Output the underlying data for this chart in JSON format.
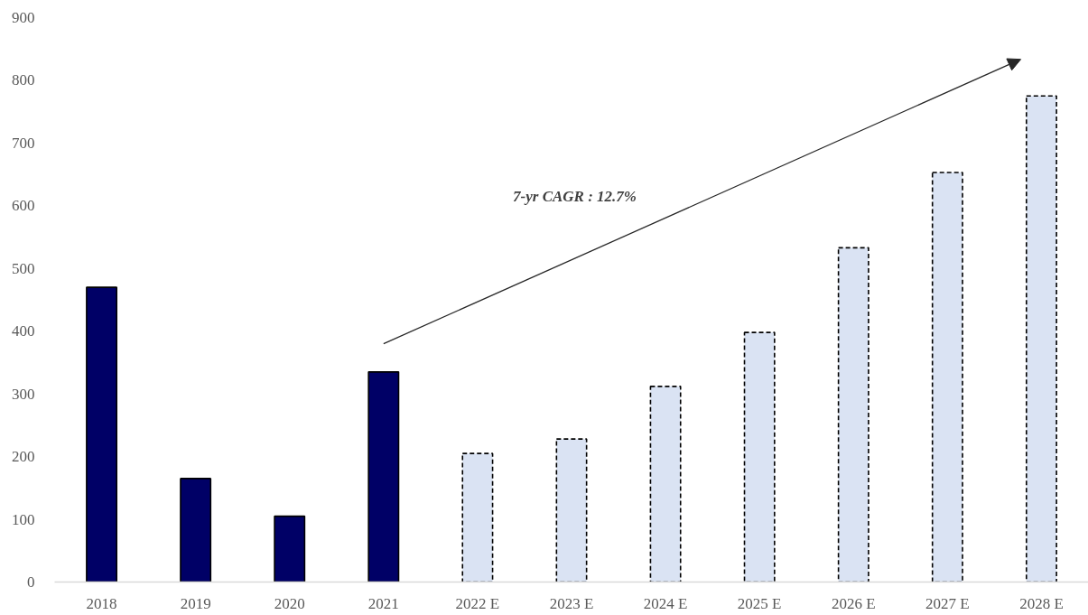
{
  "chart_data": {
    "type": "bar",
    "categories": [
      "2018",
      "2019",
      "2020",
      "2021",
      "2022 E",
      "2023 E",
      "2024 E",
      "2025 E",
      "2026 E",
      "2027 E",
      "2028 E"
    ],
    "series": [
      {
        "color": "#000066",
        "line_style": "solid",
        "values": [
          470,
          165,
          105,
          335,
          null,
          null,
          null,
          null,
          null,
          null,
          null
        ]
      },
      {
        "color": "#dae3f3",
        "line_style": "dashed",
        "values": [
          null,
          null,
          null,
          null,
          205,
          228,
          312,
          398,
          533,
          653,
          775
        ]
      }
    ],
    "ylim": [
      0,
      900
    ],
    "yticks": [
      0,
      100,
      200,
      300,
      400,
      500,
      600,
      700,
      800,
      900
    ],
    "annotations": [
      "7-yr CAGR : 12.7%"
    ]
  }
}
